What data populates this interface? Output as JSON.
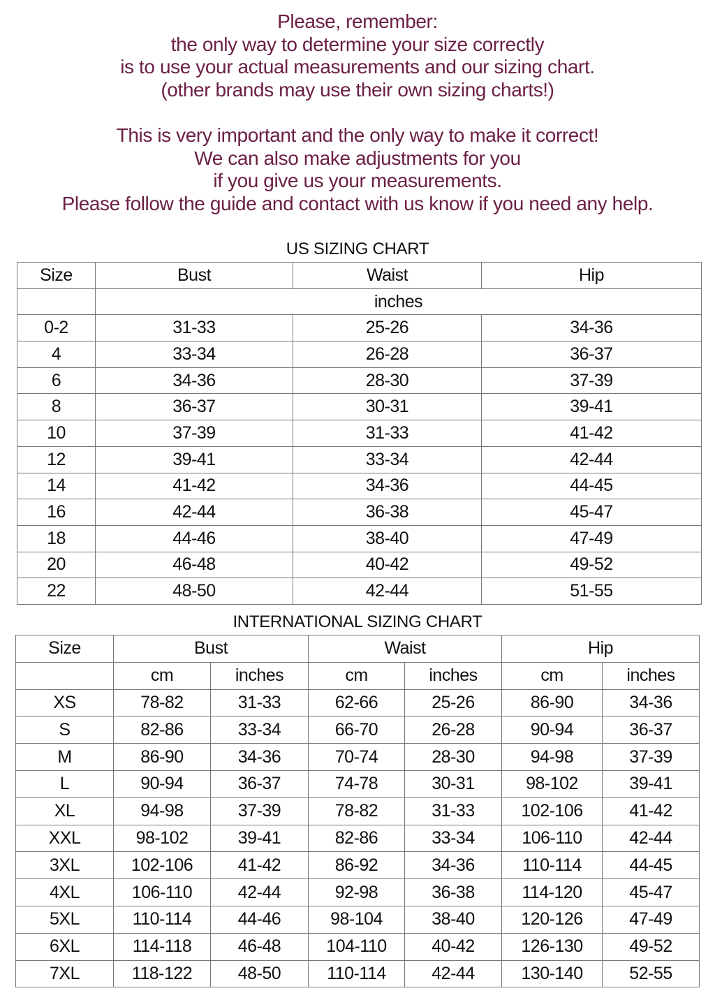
{
  "notice": {
    "color": "#6b1f45",
    "paragraph1": [
      "Please, remember:",
      "the only way to determine your size correctly",
      "is to use your actual measurements and our sizing chart.",
      "(other brands may use their own sizing charts!)"
    ],
    "paragraph2": [
      "This is very important and the only way to make it correct!",
      "We can also make adjustments for you",
      "if you give us your measurements.",
      "Please follow the guide and contact with us know if you need any help."
    ]
  },
  "us_chart": {
    "title": "US SIZING CHART",
    "headers": [
      "Size",
      "Bust",
      "Waist",
      "Hip"
    ],
    "unit": "inches",
    "rows": [
      [
        "0-2",
        "31-33",
        "25-26",
        "34-36"
      ],
      [
        "4",
        "33-34",
        "26-28",
        "36-37"
      ],
      [
        "6",
        "34-36",
        "28-30",
        "37-39"
      ],
      [
        "8",
        "36-37",
        "30-31",
        "39-41"
      ],
      [
        "10",
        "37-39",
        "31-33",
        "41-42"
      ],
      [
        "12",
        "39-41",
        "33-34",
        "42-44"
      ],
      [
        "14",
        "41-42",
        "34-36",
        "44-45"
      ],
      [
        "16",
        "42-44",
        "36-38",
        "45-47"
      ],
      [
        "18",
        "44-46",
        "38-40",
        "47-49"
      ],
      [
        "20",
        "46-48",
        "40-42",
        "49-52"
      ],
      [
        "22",
        "48-50",
        "42-44",
        "51-55"
      ]
    ]
  },
  "intl_chart": {
    "title": "INTERNATIONAL SIZING CHART",
    "headers": [
      "Size",
      "Bust",
      "Waist",
      "Hip"
    ],
    "subheaders": [
      "cm",
      "inches",
      "cm",
      "inches",
      "cm",
      "inches"
    ],
    "rows": [
      [
        "XS",
        "78-82",
        "31-33",
        "62-66",
        "25-26",
        "86-90",
        "34-36"
      ],
      [
        "S",
        "82-86",
        "33-34",
        "66-70",
        "26-28",
        "90-94",
        "36-37"
      ],
      [
        "M",
        "86-90",
        "34-36",
        "70-74",
        "28-30",
        "94-98",
        "37-39"
      ],
      [
        "L",
        "90-94",
        "36-37",
        "74-78",
        "30-31",
        "98-102",
        "39-41"
      ],
      [
        "XL",
        "94-98",
        "37-39",
        "78-82",
        "31-33",
        "102-106",
        "41-42"
      ],
      [
        "XXL",
        "98-102",
        "39-41",
        "82-86",
        "33-34",
        "106-110",
        "42-44"
      ],
      [
        "3XL",
        "102-106",
        "41-42",
        "86-92",
        "34-36",
        "110-114",
        "44-45"
      ],
      [
        "4XL",
        "106-110",
        "42-44",
        "92-98",
        "36-38",
        "114-120",
        "45-47"
      ],
      [
        "5XL",
        "110-114",
        "44-46",
        "98-104",
        "38-40",
        "120-126",
        "47-49"
      ],
      [
        "6XL",
        "114-118",
        "46-48",
        "104-110",
        "40-42",
        "126-130",
        "49-52"
      ],
      [
        "7XL",
        "118-122",
        "48-50",
        "110-114",
        "42-44",
        "130-140",
        "52-55"
      ]
    ]
  }
}
